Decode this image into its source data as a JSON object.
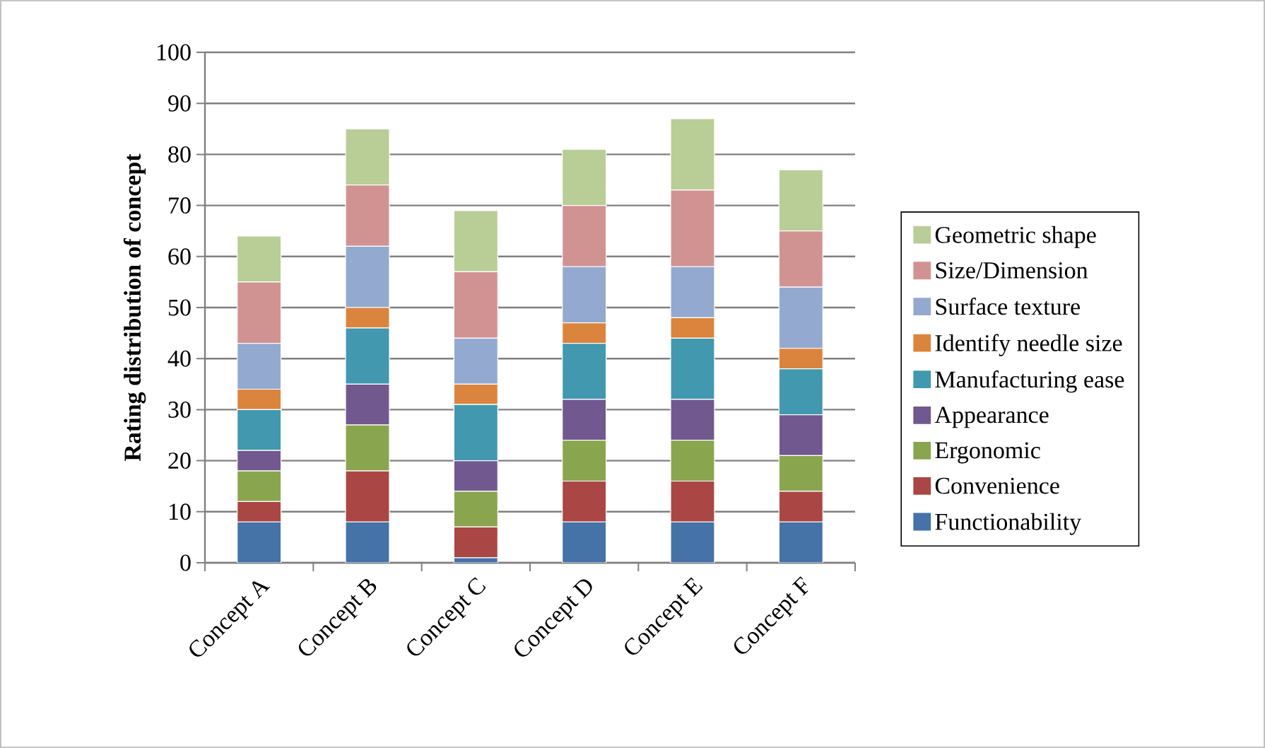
{
  "chart_data": {
    "type": "bar",
    "stacked": true,
    "ylabel": "Rating distribution of concept",
    "categories": [
      "Concept A",
      "Concept B",
      "Concept C",
      "Concept D",
      "Concept E",
      "Concept F"
    ],
    "ylim": [
      0,
      100
    ],
    "yticks": [
      0,
      10,
      20,
      30,
      40,
      50,
      60,
      70,
      80,
      90,
      100
    ],
    "grid": "y",
    "legend": "right",
    "series": [
      {
        "name": "Functionability",
        "color": "#4572a7",
        "values": [
          8,
          8,
          1,
          8,
          8,
          8
        ]
      },
      {
        "name": "Convenience",
        "color": "#aa4643",
        "values": [
          4,
          10,
          6,
          8,
          8,
          6
        ]
      },
      {
        "name": "Ergonomic",
        "color": "#89a54e",
        "values": [
          6,
          9,
          7,
          8,
          8,
          7
        ]
      },
      {
        "name": "Appearance",
        "color": "#71588f",
        "values": [
          4,
          8,
          6,
          8,
          8,
          8
        ]
      },
      {
        "name": "Manufacturing ease",
        "color": "#4198af",
        "values": [
          8,
          11,
          11,
          11,
          12,
          9
        ]
      },
      {
        "name": "Identify needle size",
        "color": "#db843d",
        "values": [
          4,
          4,
          4,
          4,
          4,
          4
        ]
      },
      {
        "name": "Surface texture",
        "color": "#93a9cf",
        "values": [
          9,
          12,
          9,
          11,
          10,
          12
        ]
      },
      {
        "name": "Size/Dimension",
        "color": "#d19392",
        "values": [
          12,
          12,
          13,
          12,
          15,
          11
        ]
      },
      {
        "name": "Geometric shape",
        "color": "#b9cd96",
        "values": [
          9,
          11,
          12,
          11,
          14,
          12
        ]
      }
    ]
  }
}
